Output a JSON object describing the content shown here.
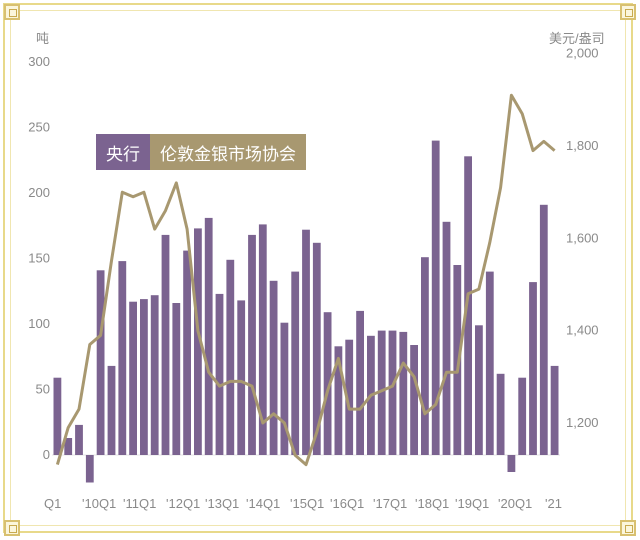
{
  "chart_data": {
    "type": "bar+line",
    "left_axis_unit": "吨",
    "right_axis_unit": "美元/盎司",
    "y_left_ticks": [
      "300",
      "250",
      "200",
      "150",
      "100",
      "50",
      "0"
    ],
    "y_left_range": [
      -25,
      300
    ],
    "y_right_ticks": [
      "2,000",
      "1,800",
      "1,600",
      "1,400",
      "1,200"
    ],
    "y_right_range": [
      1100,
      2000
    ],
    "x_tick_labels": [
      "Q1",
      "'10Q1",
      "'11Q1",
      "'12Q1",
      "'13Q1",
      "'14Q1",
      "'15Q1",
      "'16Q1",
      "'17Q1",
      "'18Q1",
      "'19Q1",
      "'20Q1",
      "'21"
    ],
    "legend": [
      "央行",
      "伦敦金银市场协会"
    ],
    "colors": {
      "bars": "#7b6390",
      "line": "#a89870",
      "legend_bar": "#7b6390",
      "legend_line": "#a89870"
    },
    "bars": {
      "name": "央行",
      "values": [
        59,
        13,
        23,
        -21,
        141,
        68,
        148,
        117,
        119,
        122,
        168,
        116,
        156,
        173,
        181,
        123,
        149,
        118,
        168,
        176,
        133,
        101,
        140,
        172,
        162,
        109,
        83,
        88,
        110,
        91,
        95,
        95,
        94,
        84,
        151,
        240,
        178,
        145,
        228,
        99,
        140,
        62,
        -13,
        59,
        132,
        191,
        68
      ]
    },
    "line": {
      "name": "伦敦金银市场协会",
      "values": [
        1110,
        1190,
        1230,
        1370,
        1390,
        1550,
        1700,
        1690,
        1700,
        1620,
        1660,
        1720,
        1620,
        1400,
        1310,
        1280,
        1290,
        1290,
        1280,
        1200,
        1220,
        1200,
        1130,
        1110,
        1180,
        1270,
        1340,
        1230,
        1230,
        1260,
        1270,
        1280,
        1330,
        1300,
        1220,
        1240,
        1310,
        1310,
        1480,
        1490,
        1590,
        1710,
        1910,
        1870,
        1790,
        1810,
        1790
      ]
    }
  }
}
